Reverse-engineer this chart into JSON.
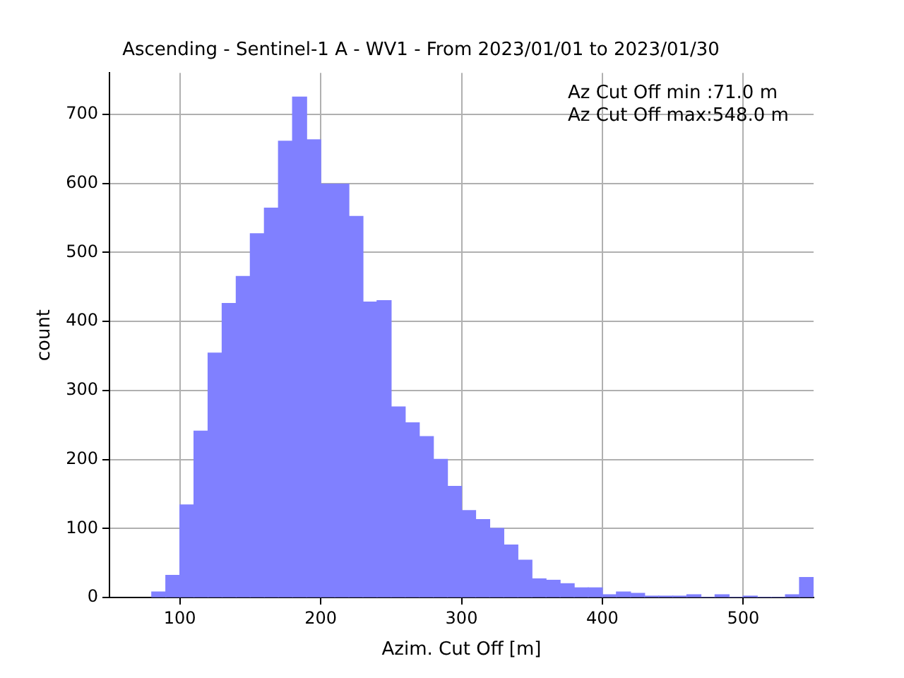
{
  "chart_data": {
    "type": "histogram",
    "title": "Ascending - Sentinel-1 A - WV1 - From 2023/01/01 to 2023/01/30",
    "xlabel": "Azim. Cut Off [m]",
    "ylabel": "count",
    "bins": [
      80,
      90,
      100,
      110,
      120,
      130,
      140,
      150,
      160,
      170,
      180,
      190,
      200,
      210,
      220,
      230,
      240,
      250,
      260,
      270,
      280,
      290,
      300,
      310,
      320,
      330,
      340,
      350,
      360,
      370,
      380,
      390,
      400,
      410,
      420,
      430,
      440,
      450,
      460,
      470,
      480,
      490,
      500,
      510,
      520,
      530,
      540,
      550
    ],
    "values": [
      8,
      32,
      134,
      241,
      354,
      426,
      465,
      527,
      564,
      661,
      725,
      663,
      599,
      599,
      552,
      428,
      430,
      276,
      253,
      233,
      200,
      161,
      126,
      113,
      100,
      76,
      54,
      27,
      25,
      20,
      14,
      14,
      4,
      8,
      6,
      2,
      2,
      2,
      4,
      0,
      4,
      0,
      2,
      0,
      0,
      4,
      29
    ],
    "color": "#8080ff",
    "xlim": [
      50,
      550
    ],
    "xticks": [
      100,
      200,
      300,
      400,
      500
    ],
    "ylim": [
      0,
      760
    ],
    "yticks": [
      0,
      100,
      200,
      300,
      400,
      500,
      600,
      700
    ],
    "grid": true,
    "annotations": [
      "Az Cut Off min :71.0 m",
      "Az Cut Off max:548.0 m"
    ]
  }
}
